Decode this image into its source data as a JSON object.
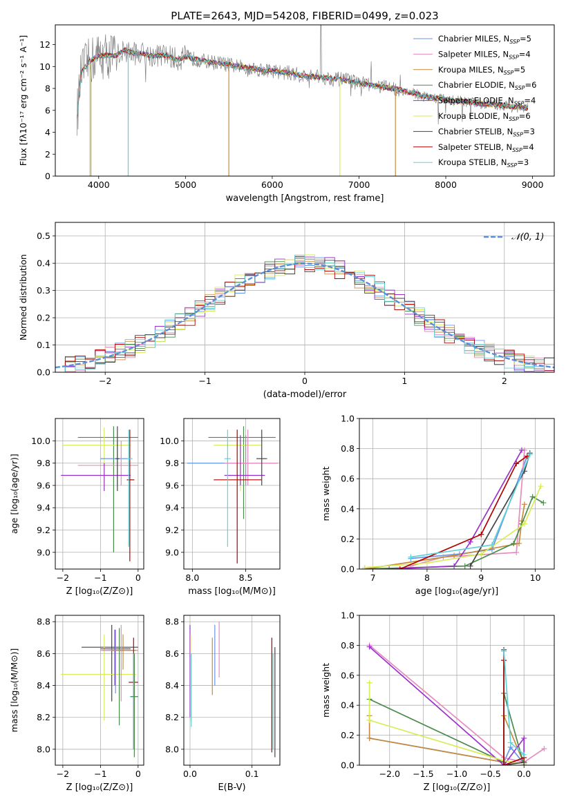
{
  "colors": {
    "Chabrier MILES": "#6495ed",
    "Salpeter MILES": "#e58bbd",
    "Kroupa MILES": "#c58a3b",
    "Chabrier ELODIE": "#4a8a4a",
    "Salpeter ELODIE": "#9932cc",
    "Kroupa ELODIE": "#d8ec55",
    "Chabrier STELIB": "#444444",
    "Salpeter STELIB": "#b00000",
    "Kroupa STELIB": "#60d0d8",
    "gauss": "#5b8ed6",
    "spectrum": "#808080"
  },
  "chart_data": [
    {
      "id": "spectrum",
      "type": "line",
      "title": "PLATE=2643, MJD=54208, FIBERID=0499, z=0.023",
      "xlabel": "wavelength [Angstrom, rest frame]",
      "ylabel": "Flux [fλ10⁻¹⁷ erg cm⁻² s⁻¹ A⁻¹]",
      "xlim": [
        3500,
        9250
      ],
      "ylim": [
        0,
        13.8
      ],
      "xticks": [
        4000,
        5000,
        6000,
        7000,
        8000,
        9000
      ],
      "yticks": [
        0,
        2,
        4,
        6,
        8,
        10,
        12
      ],
      "grid": false,
      "legend": {
        "placement": "top-right",
        "entries": [
          "Chabrier MILES, N_SSP=5",
          "Salpeter MILES, N_SSP=4",
          "Kroupa MILES, N_SSP=5",
          "Chabrier ELODIE, N_SSP=6",
          "Salpeter ELODIE, N_SSP=4",
          "Kroupa ELODIE, N_SSP=6",
          "Chabrier STELIB, N_SSP=3",
          "Salpeter STELIB, N_SSP=4",
          "Kroupa STELIB, N_SSP=3"
        ]
      },
      "continuum": {
        "x": [
          3750,
          3800,
          3900,
          4000,
          4100,
          4200,
          4300,
          4400,
          4500,
          4600,
          4700,
          4800,
          4900,
          5000,
          5200,
          5400,
          5600,
          5800,
          6000,
          6200,
          6400,
          6600,
          6800,
          7000,
          7200,
          7400,
          7600,
          7800,
          8000,
          8200,
          8400,
          8600,
          8800,
          8950
        ],
        "y": [
          5.5,
          9.5,
          10.5,
          11.0,
          11.0,
          11.0,
          11.5,
          11.2,
          11.2,
          11.0,
          11.0,
          11.0,
          10.6,
          10.9,
          10.5,
          10.3,
          10.0,
          9.8,
          9.6,
          9.4,
          9.1,
          9.0,
          8.8,
          8.5,
          8.2,
          8.0,
          7.6,
          7.2,
          7.0,
          6.8,
          6.6,
          6.5,
          6.3,
          6.2
        ]
      },
      "absorption_features_x": [
        3895,
        3910,
        4340,
        5500,
        6780,
        7420
      ]
    },
    {
      "id": "residuals",
      "type": "line",
      "xlabel": "(data-model)/error",
      "ylabel": "Normed distribution",
      "xlim": [
        -2.5,
        2.5
      ],
      "ylim": [
        0,
        0.55
      ],
      "xticks": [
        -2,
        -1,
        0,
        1,
        2
      ],
      "yticks": [
        0.0,
        0.1,
        0.2,
        0.3,
        0.4,
        0.5
      ],
      "grid": true,
      "legend": {
        "placement": "top-right",
        "entries": [
          "𝒩(0, 1)"
        ]
      },
      "gaussian": {
        "mean": 0,
        "sigma": 1
      },
      "bin_width": 0.1,
      "hist_range": [
        -2.5,
        2.5
      ]
    },
    {
      "id": "age_vs_Z",
      "type": "scatter",
      "xlabel": "Z [log₁₀(Z/Z⊙)]",
      "ylabel": "age  [log₁₀(age/yr)]",
      "xlim": [
        -2.2,
        0.15
      ],
      "ylim": [
        8.85,
        10.2
      ],
      "xticks": [
        -2,
        -1,
        0
      ],
      "yticks": [
        9.0,
        9.2,
        9.4,
        9.6,
        9.8,
        10.0
      ],
      "grid": true,
      "errorbars": [
        {
          "model": "Chabrier ELODIE",
          "x": -0.65,
          "y": 10.03,
          "x_range": [
            -1.6,
            0.0
          ],
          "y_range": [
            9.0,
            10.13
          ]
        },
        {
          "model": "Kroupa ELODIE",
          "x": -0.9,
          "y": 9.96,
          "x_range": [
            -2.0,
            -0.2
          ],
          "y_range": [
            9.55,
            10.12
          ]
        },
        {
          "model": "Chabrier MILES",
          "x": -0.55,
          "y": 9.84,
          "x_range": [
            -1.0,
            -0.2
          ],
          "y_range": [
            9.6,
            10.0
          ]
        },
        {
          "model": "Salpeter MILES",
          "x": -0.45,
          "y": 9.78,
          "x_range": [
            -1.6,
            0.0
          ],
          "y_range": [
            9.6,
            10.0
          ]
        },
        {
          "model": "Salpeter ELODIE",
          "x": -0.9,
          "y": 9.69,
          "x_range": [
            -2.05,
            -0.2
          ],
          "y_range": [
            9.55,
            9.8
          ]
        },
        {
          "model": "Salpeter STELIB",
          "x": -0.22,
          "y": 9.65,
          "x_range": [
            -0.3,
            -0.1
          ],
          "y_range": [
            8.92,
            10.1
          ]
        },
        {
          "model": "Kroupa STELIB",
          "x": -0.25,
          "y": 9.84,
          "x_range": [
            -0.3,
            -0.15
          ],
          "y_range": [
            9.05,
            10.1
          ]
        },
        {
          "model": "Chabrier STELIB",
          "x": -0.55,
          "y": 9.84,
          "x_range": [
            -0.6,
            -0.5
          ],
          "y_range": [
            9.55,
            10.13
          ]
        }
      ]
    },
    {
      "id": "age_vs_mass",
      "type": "scatter",
      "xlabel": "mass [log₁₀(M/M⊙)]",
      "xlim": [
        7.92,
        8.82
      ],
      "ylim": [
        8.85,
        10.2
      ],
      "xticks": [
        8.0,
        8.5
      ],
      "yticks": [
        9.0,
        9.2,
        9.4,
        9.6,
        9.8,
        10.0
      ],
      "grid": true,
      "errorbars": [
        {
          "model": "Chabrier ELODIE",
          "x": 8.48,
          "y": 10.03,
          "x_range": [
            8.15,
            8.78
          ],
          "y_range": [
            9.3,
            10.13
          ]
        },
        {
          "model": "Kroupa ELODIE",
          "x": 8.45,
          "y": 9.96,
          "x_range": [
            8.2,
            8.65
          ],
          "y_range": [
            9.55,
            10.05
          ]
        },
        {
          "model": "Chabrier MILES",
          "x": 8.5,
          "y": 9.8,
          "x_range": [
            7.95,
            8.8
          ],
          "y_range": [
            9.6,
            10.05
          ]
        },
        {
          "model": "Salpeter MILES",
          "x": 8.52,
          "y": 9.8,
          "x_range": [
            8.3,
            8.8
          ],
          "y_range": [
            9.6,
            10.1
          ]
        },
        {
          "model": "Salpeter ELODIE",
          "x": 8.45,
          "y": 9.69,
          "x_range": [
            8.3,
            8.68
          ],
          "y_range": [
            9.6,
            10.05
          ]
        },
        {
          "model": "Salpeter STELIB",
          "x": 8.42,
          "y": 9.65,
          "x_range": [
            8.2,
            8.65
          ],
          "y_range": [
            8.9,
            10.1
          ]
        },
        {
          "model": "Kroupa STELIB",
          "x": 8.33,
          "y": 9.84,
          "x_range": [
            8.3,
            8.36
          ],
          "y_range": [
            9.05,
            10.1
          ]
        },
        {
          "model": "Chabrier STELIB",
          "x": 8.65,
          "y": 9.84,
          "x_range": [
            8.6,
            8.7
          ],
          "y_range": [
            9.6,
            10.1
          ]
        }
      ]
    },
    {
      "id": "weight_vs_age",
      "type": "line",
      "xlabel": "age  [log₁₀(age/yr)]",
      "ylabel": "mass weight",
      "xlim": [
        6.75,
        10.35
      ],
      "ylim": [
        0,
        1.0
      ],
      "xticks": [
        7,
        8,
        9,
        10
      ],
      "yticks": [
        0.0,
        0.2,
        0.4,
        0.6,
        0.8,
        1.0
      ],
      "grid": true,
      "series": [
        {
          "model": "Chabrier MILES",
          "x": [
            7.7,
            8.6,
            9.2,
            9.85
          ],
          "y": [
            0.07,
            0.1,
            0.13,
            0.75
          ]
        },
        {
          "model": "Salpeter MILES",
          "x": [
            7.7,
            8.3,
            9.65,
            9.8
          ],
          "y": [
            0.02,
            0.08,
            0.11,
            0.79
          ]
        },
        {
          "model": "Kroupa MILES",
          "x": [
            6.85,
            8.5,
            9.7,
            9.75,
            9.8
          ],
          "y": [
            0.0,
            0.09,
            0.17,
            0.32,
            0.43
          ]
        },
        {
          "model": "Chabrier ELODIE",
          "x": [
            6.85,
            8.7,
            9.6,
            9.75,
            9.95,
            10.15
          ],
          "y": [
            0.0,
            0.02,
            0.17,
            0.3,
            0.48,
            0.44
          ]
        },
        {
          "model": "Salpeter ELODIE",
          "x": [
            7.3,
            8.5,
            8.8,
            9.75
          ],
          "y": [
            0.0,
            0.02,
            0.18,
            0.79
          ]
        },
        {
          "model": "Kroupa ELODIE",
          "x": [
            6.85,
            8.0,
            9.0,
            9.8,
            10.1
          ],
          "y": [
            0.01,
            0.04,
            0.1,
            0.3,
            0.55
          ]
        },
        {
          "model": "Chabrier STELIB",
          "x": [
            8.8,
            9.8,
            9.9
          ],
          "y": [
            0.02,
            0.65,
            0.77
          ]
        },
        {
          "model": "Salpeter STELIB",
          "x": [
            7.5,
            9.0,
            9.65,
            9.85
          ],
          "y": [
            0.0,
            0.23,
            0.7,
            0.75
          ]
        },
        {
          "model": "Kroupa STELIB",
          "x": [
            7.7,
            9.2,
            9.9
          ],
          "y": [
            0.08,
            0.16,
            0.76
          ]
        }
      ]
    },
    {
      "id": "mass_vs_Z",
      "type": "scatter",
      "xlabel": "Z [log₁₀(Z/Z⊙)]",
      "ylabel": "mass [log₁₀(M/M⊙)]",
      "xlim": [
        -2.2,
        0.15
      ],
      "ylim": [
        7.9,
        8.84
      ],
      "xticks": [
        -2,
        -1,
        0
      ],
      "yticks": [
        8.0,
        8.2,
        8.4,
        8.6,
        8.8
      ],
      "grid": true,
      "errorbars": [
        {
          "model": "Chabrier STELIB",
          "x": -0.7,
          "y": 8.64,
          "x_range": [
            -1.5,
            0.0
          ],
          "y_range": [
            8.3,
            8.78
          ]
        },
        {
          "model": "Kroupa ELODIE",
          "x": -0.9,
          "y": 8.47,
          "x_range": [
            -2.05,
            -0.05
          ],
          "y_range": [
            8.18,
            8.72
          ]
        },
        {
          "model": "Salpeter ELODIE",
          "x": -0.62,
          "y": 8.63,
          "x_range": [
            -1.0,
            -0.2
          ],
          "y_range": [
            8.4,
            8.75
          ]
        },
        {
          "model": "Chabrier ELODIE",
          "x": -0.5,
          "y": 8.63,
          "x_range": [
            -0.8,
            -0.2
          ],
          "y_range": [
            8.15,
            8.76
          ]
        },
        {
          "model": "Chabrier MILES",
          "x": -0.6,
          "y": 8.62,
          "x_range": [
            -0.95,
            -0.15
          ],
          "y_range": [
            8.35,
            8.75
          ]
        },
        {
          "model": "Salpeter MILES",
          "x": -0.45,
          "y": 8.62,
          "x_range": [
            -1.0,
            0.0
          ],
          "y_range": [
            8.3,
            8.78
          ]
        },
        {
          "model": "Kroupa MILES",
          "x": -0.4,
          "y": 8.62,
          "x_range": [
            -0.7,
            -0.05
          ],
          "y_range": [
            8.5,
            8.72
          ]
        },
        {
          "model": "Salpeter STELIB",
          "x": -0.12,
          "y": 8.42,
          "x_range": [
            -0.25,
            0.0
          ],
          "y_range": [
            8.0,
            8.7
          ]
        },
        {
          "model": "Kroupa STELIB",
          "x": -0.12,
          "y": 8.33,
          "x_range": [
            -0.22,
            -0.02
          ],
          "y_range": [
            8.0,
            8.6
          ]
        },
        {
          "model": "Chabrier ELODIE",
          "x": -0.1,
          "y": 8.33,
          "x_range": [
            -0.2,
            0.0
          ],
          "y_range": [
            7.95,
            8.6
          ]
        }
      ]
    },
    {
      "id": "mass_vs_ebv",
      "type": "scatter",
      "xlabel": "E(B-V)",
      "xlim": [
        -0.01,
        0.145
      ],
      "ylim": [
        7.9,
        8.84
      ],
      "xticks": [
        0.0,
        0.1
      ],
      "yticks": [
        8.0,
        8.2,
        8.4,
        8.6,
        8.8
      ],
      "grid": true,
      "vbars": [
        {
          "model": "Salpeter ELODIE",
          "x": 0.0,
          "y_range": [
            8.2,
            8.78
          ]
        },
        {
          "model": "Kroupa ELODIE",
          "x": 0.001,
          "y_range": [
            8.18,
            8.72
          ]
        },
        {
          "model": "Kroupa STELIB",
          "x": 0.002,
          "y_range": [
            8.14,
            8.6
          ]
        },
        {
          "model": "Chabrier MILES",
          "x": 0.04,
          "y_range": [
            8.4,
            8.78
          ]
        },
        {
          "model": "Kroupa MILES",
          "x": 0.036,
          "y_range": [
            8.34,
            8.7
          ]
        },
        {
          "model": "Salpeter MILES",
          "x": 0.047,
          "y_range": [
            8.45,
            8.8
          ]
        },
        {
          "model": "Salpeter STELIB",
          "x": 0.132,
          "y_range": [
            7.98,
            8.7
          ]
        },
        {
          "model": "Chabrier STELIB",
          "x": 0.137,
          "y_range": [
            7.95,
            8.64
          ]
        },
        {
          "model": "Kroupa STELIB",
          "x": 0.134,
          "y_range": [
            8.0,
            8.6
          ]
        }
      ]
    },
    {
      "id": "weight_vs_Z",
      "type": "line",
      "xlabel": "Z [log₁₀(Z/Z⊙)]",
      "ylabel": "mass weight",
      "xlim": [
        -2.45,
        0.45
      ],
      "ylim": [
        0,
        1.0
      ],
      "xticks": [
        -2.0,
        -1.5,
        -1.0,
        -0.5,
        0.0
      ],
      "yticks": [
        0.0,
        0.2,
        0.4,
        0.6,
        0.8,
        1.0
      ],
      "grid": true,
      "series": [
        {
          "model": "Chabrier MILES",
          "x": [
            -2.3,
            -0.3,
            -0.2,
            0.0
          ],
          "y": [
            0.18,
            0.02,
            0.12,
            0.01
          ]
        },
        {
          "model": "Salpeter MILES",
          "x": [
            -2.3,
            -0.3,
            0.0,
            0.3
          ],
          "y": [
            0.8,
            0.05,
            0.02,
            0.11
          ]
        },
        {
          "model": "Kroupa MILES",
          "x": [
            -2.3,
            -2.3,
            -0.3,
            -0.3,
            0.0
          ],
          "y": [
            0.33,
            0.18,
            0.02,
            0.33,
            0.01
          ]
        },
        {
          "model": "Chabrier ELODIE",
          "x": [
            -2.3,
            -0.3,
            -0.3,
            0.0
          ],
          "y": [
            0.44,
            0.02,
            0.48,
            0.0
          ]
        },
        {
          "model": "Salpeter ELODIE",
          "x": [
            -2.3,
            -0.3,
            0.0,
            0.0
          ],
          "y": [
            0.79,
            0.0,
            0.18,
            0.02
          ]
        },
        {
          "model": "Kroupa ELODIE",
          "x": [
            -2.3,
            -2.3,
            -0.3,
            0.0
          ],
          "y": [
            0.55,
            0.3,
            0.03,
            0.01
          ]
        },
        {
          "model": "Chabrier STELIB",
          "x": [
            -0.3,
            -0.3,
            0.0
          ],
          "y": [
            0.77,
            0.0,
            0.02
          ]
        },
        {
          "model": "Salpeter STELIB",
          "x": [
            -0.3,
            -0.3,
            0.0
          ],
          "y": [
            0.7,
            0.0,
            0.05
          ]
        },
        {
          "model": "Kroupa STELIB",
          "x": [
            -0.3,
            -0.2,
            0.0
          ],
          "y": [
            0.76,
            0.15,
            0.07
          ]
        }
      ]
    }
  ]
}
